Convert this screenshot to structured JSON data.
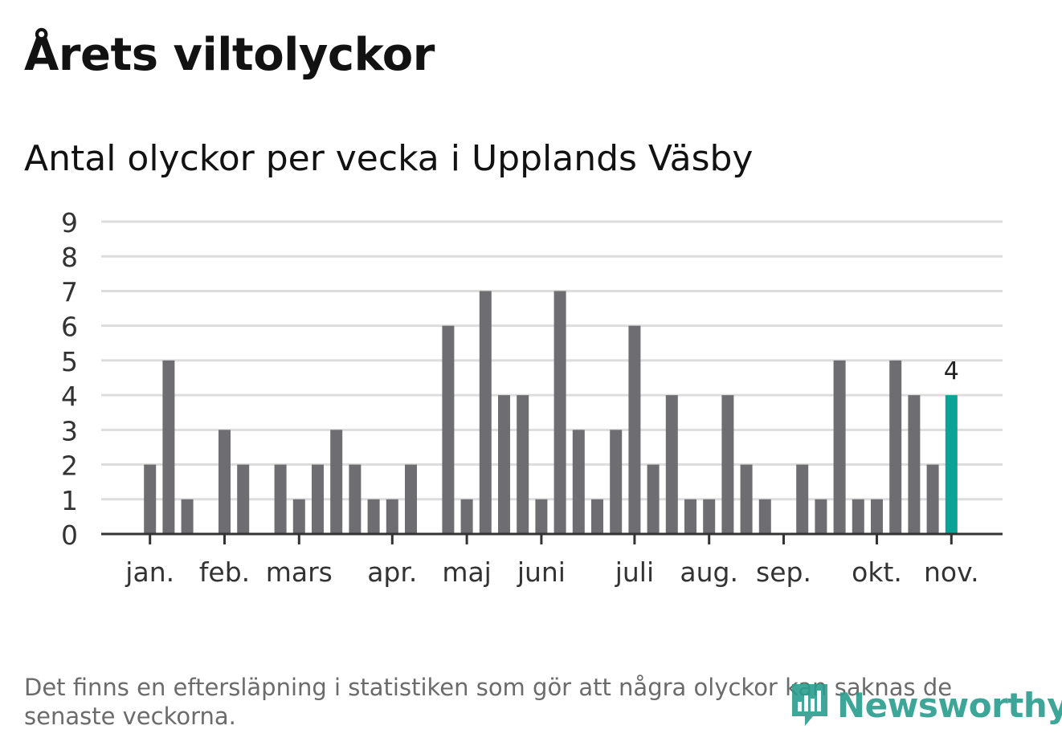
{
  "header": {
    "title": "Årets viltolyckor",
    "subtitle": "Antal olyckor per vecka i Upplands Väsby"
  },
  "footer": {
    "note": "Det finns en eftersläpning i statistiken som gör att några olyckor kan saknas de senaste veckorna.",
    "brand": "Newsworthy"
  },
  "colors": {
    "bar": "#6e6d72",
    "highlight": "#0aa396",
    "grid": "#dddddd",
    "axis": "#333333",
    "brand": "#2a9d8f"
  },
  "chart_data": {
    "type": "bar",
    "title": "Antal olyckor per vecka i Upplands Väsby",
    "xlabel": "",
    "ylabel": "",
    "ylim": [
      0,
      9
    ],
    "yticks": [
      "0",
      "1",
      "2",
      "3",
      "4",
      "5",
      "6",
      "7",
      "8",
      "9"
    ],
    "grid": true,
    "series": [
      {
        "name": "Antal olyckor",
        "values": [
          0,
          2,
          5,
          1,
          0,
          3,
          2,
          0,
          2,
          1,
          2,
          3,
          2,
          1,
          1,
          2,
          0,
          6,
          1,
          7,
          4,
          4,
          1,
          7,
          3,
          1,
          3,
          6,
          2,
          4,
          1,
          1,
          4,
          2,
          1,
          0,
          2,
          1,
          5,
          1,
          1,
          5,
          4,
          2,
          4
        ]
      }
    ],
    "highlight": {
      "index": 44,
      "label": "4"
    },
    "month_labels": [
      {
        "label": "jan.",
        "week": 1
      },
      {
        "label": "feb.",
        "week": 5
      },
      {
        "label": "mars",
        "week": 9
      },
      {
        "label": "apr.",
        "week": 14
      },
      {
        "label": "maj",
        "week": 18
      },
      {
        "label": "juni",
        "week": 22
      },
      {
        "label": "juli",
        "week": 27
      },
      {
        "label": "aug.",
        "week": 31
      },
      {
        "label": "sep.",
        "week": 35
      },
      {
        "label": "okt.",
        "week": 40
      },
      {
        "label": "nov.",
        "week": 44
      }
    ]
  }
}
